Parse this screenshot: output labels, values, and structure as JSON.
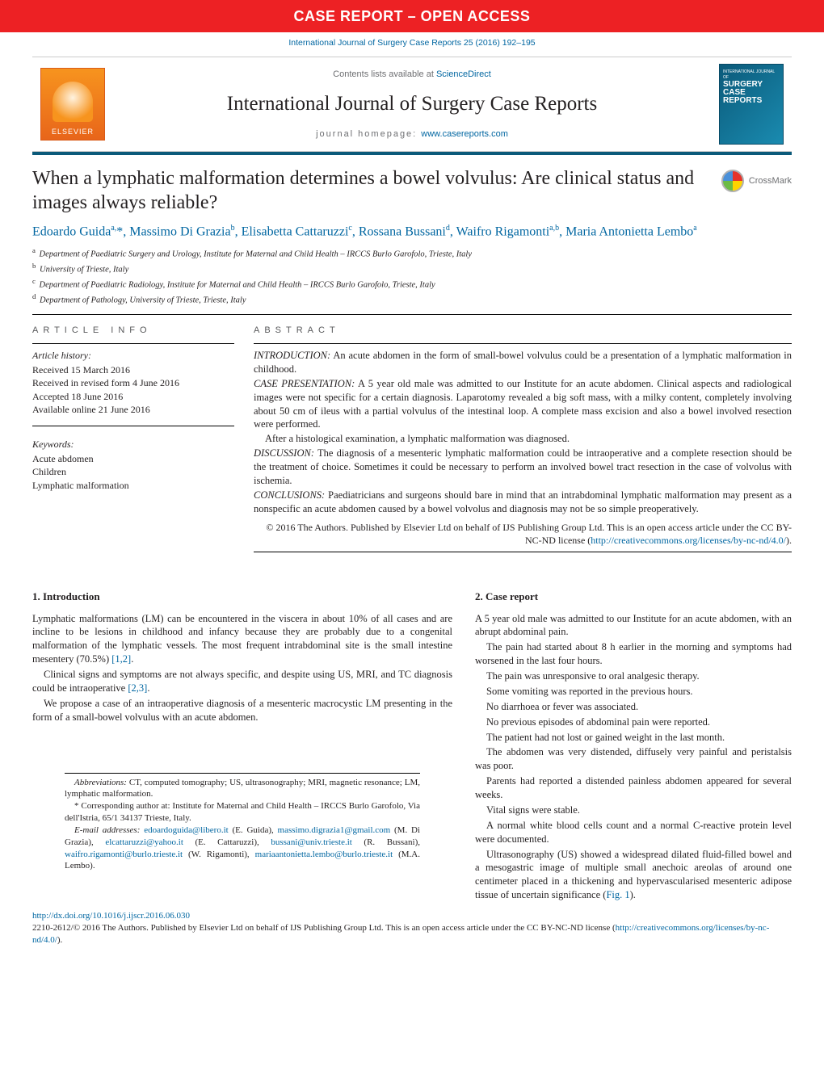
{
  "banner": {
    "text": "CASE REPORT – OPEN ACCESS",
    "bg": "#ed2124",
    "color": "#ffffff"
  },
  "citation": "International Journal of Surgery Case Reports 25 (2016) 192–195",
  "masthead": {
    "contents_prefix": "Contents lists available at ",
    "contents_link": "ScienceDirect",
    "journal_title": "International Journal of Surgery Case Reports",
    "homepage_label": "journal homepage: ",
    "homepage_url": "www.casereports.com",
    "elsevier_label": "ELSEVIER",
    "cover_line1": "INTERNATIONAL JOURNAL OF",
    "cover_line2": "SURGERY CASE REPORTS"
  },
  "article": {
    "title": "When a lymphatic malformation determines a bowel volvulus: Are clinical status and images always reliable?",
    "crossmark": "CrossMark",
    "authors_html": "Edoardo Guida<sup>a,</sup>*, Massimo Di Grazia<sup>b</sup>, Elisabetta Cattaruzzi<sup>c</sup>, Rossana Bussani<sup>d</sup>, Waifro Rigamonti<sup>a,b</sup>, Maria Antonietta Lembo<sup>a</sup>",
    "affiliations": [
      {
        "sup": "a",
        "text": "Department of Paediatric Surgery and Urology, Institute for Maternal and Child Health – IRCCS Burlo Garofolo, Trieste, Italy"
      },
      {
        "sup": "b",
        "text": "University of Trieste, Italy"
      },
      {
        "sup": "c",
        "text": "Department of Paediatric Radiology, Institute for Maternal and Child Health – IRCCS Burlo Garofolo, Trieste, Italy"
      },
      {
        "sup": "d",
        "text": "Department of Pathology, University of Trieste, Trieste, Italy"
      }
    ]
  },
  "article_info": {
    "heading": "ARTICLE INFO",
    "history_label": "Article history:",
    "history": [
      "Received 15 March 2016",
      "Received in revised form 4 June 2016",
      "Accepted 18 June 2016",
      "Available online 21 June 2016"
    ],
    "keywords_label": "Keywords:",
    "keywords": [
      "Acute abdomen",
      "Children",
      "Lymphatic malformation"
    ]
  },
  "abstract": {
    "heading": "ABSTRACT",
    "paras": [
      {
        "label": "INTRODUCTION:",
        "text": " An acute abdomen in the form of small-bowel volvulus could be a presentation of a lymphatic malformation in childhood."
      },
      {
        "label": "CASE PRESENTATION:",
        "text": " A 5 year old male was admitted to our Institute for an acute abdomen. Clinical aspects and radiological images were not specific for a certain diagnosis. Laparotomy revealed a big soft mass, with a milky content, completely involving about 50 cm of ileus with a partial volvulus of the intestinal loop. A complete mass excision and also a bowel involved resection were performed."
      },
      {
        "label": "",
        "text": "After a histological examination, a lymphatic malformation was diagnosed."
      },
      {
        "label": "DISCUSSION:",
        "text": " The diagnosis of a mesenteric lymphatic malformation could be intraoperative and a complete resection should be the treatment of choice. Sometimes it could be necessary to perform an involved bowel tract resection in the case of volvolus with ischemia."
      },
      {
        "label": "CONCLUSIONS:",
        "text": " Paediatricians and surgeons should bare in mind that an intrabdominal lymphatic malformation may present as a nonspecific an acute abdomen caused by a bowel volvolus and diagnosis may not be so simple preoperatively."
      }
    ],
    "copyright": "© 2016 The Authors. Published by Elsevier Ltd on behalf of IJS Publishing Group Ltd. This is an open access article under the CC BY-NC-ND license (",
    "license_url": "http://creativecommons.org/licenses/by-nc-nd/4.0/",
    "copyright_close": ")."
  },
  "sections": {
    "intro_heading": "1.  Introduction",
    "intro_paras": [
      "Lymphatic malformations (LM) can be encountered in the viscera in about 10% of all cases and are incline to be lesions in childhood and infancy because they are probably due to a congenital malformation of the lymphatic vessels. The most frequent intrabdominal site is the small intestine mesentery (70.5%) [1,2].",
      "Clinical signs and symptoms are not always specific, and despite using US, MRI, and TC diagnosis could be intraoperative [2,3].",
      "We propose a case of an intraoperative diagnosis of a mesenteric macrocystic LM presenting in the form of a small-bowel volvulus with an acute abdomen."
    ],
    "case_heading": "2.  Case report",
    "case_paras": [
      "A 5 year old male was admitted to our Institute for an acute abdomen, with an abrupt abdominal pain.",
      "The pain had started about 8 h earlier in the morning and symptoms had worsened in the last four hours.",
      "The pain was unresponsive to oral analgesic therapy.",
      "Some vomiting was reported in the previous hours.",
      "No diarrhoea or fever was associated.",
      "No previous episodes of abdominal pain were reported.",
      "The patient had not lost or gained weight in the last month.",
      "The abdomen was very distended, diffusely very painful and peristalsis was poor.",
      "Parents had reported a distended painless abdomen appeared for several weeks.",
      "Vital signs were stable.",
      "A normal white blood cells count and a normal C-reactive protein level were documented.",
      "Ultrasonography (US) showed a widespread dilated fluid-filled bowel and a mesogastric image of multiple small anechoic areolas of around one centimeter placed in a thickening and hypervascularised mesenteric adipose tissue of uncertain significance (Fig. 1)."
    ]
  },
  "footnotes": {
    "abbrev_label": "Abbreviations:",
    "abbrev_text": " CT, computed tomography; US, ultrasonography; MRI, magnetic resonance; LM, lymphatic malformation.",
    "corr_label": "* Corresponding author at:",
    "corr_text": " Institute for Maternal and Child Health – IRCCS Burlo Garofolo, Via dell'Istria, 65/1 34137 Trieste, Italy.",
    "email_label": "E-mail addresses:",
    "emails": [
      {
        "addr": "edoardoguida@libero.it",
        "who": "(E. Guida),"
      },
      {
        "addr": "massimo.digrazia1@gmail.com",
        "who": "(M. Di Grazia),"
      },
      {
        "addr": "elcattaruzzi@yahoo.it",
        "who": "(E. Cattaruzzi),"
      },
      {
        "addr": "bussani@univ.trieste.it",
        "who": "(R. Bussani),"
      },
      {
        "addr": "waifro.rigamonti@burlo.trieste.it",
        "who": "(W. Rigamonti),"
      },
      {
        "addr": "mariaantonietta.lembo@burlo.trieste.it",
        "who": "(M.A. Lembo)."
      }
    ]
  },
  "doi": {
    "url": "http://dx.doi.org/10.1016/j.ijscr.2016.06.030",
    "issn_line": "2210-2612/© 2016 The Authors. Published by Elsevier Ltd on behalf of IJS Publishing Group Ltd. This is an open access article under the CC BY-NC-ND license (",
    "license_url": "http://creativecommons.org/licenses/by-nc-nd/4.0/",
    "close": ")."
  },
  "colors": {
    "link": "#0066a1",
    "banner_bg": "#ed2124",
    "sep_bar": "#0b5a7a",
    "text": "#231f20",
    "muted": "#6d6e71"
  }
}
